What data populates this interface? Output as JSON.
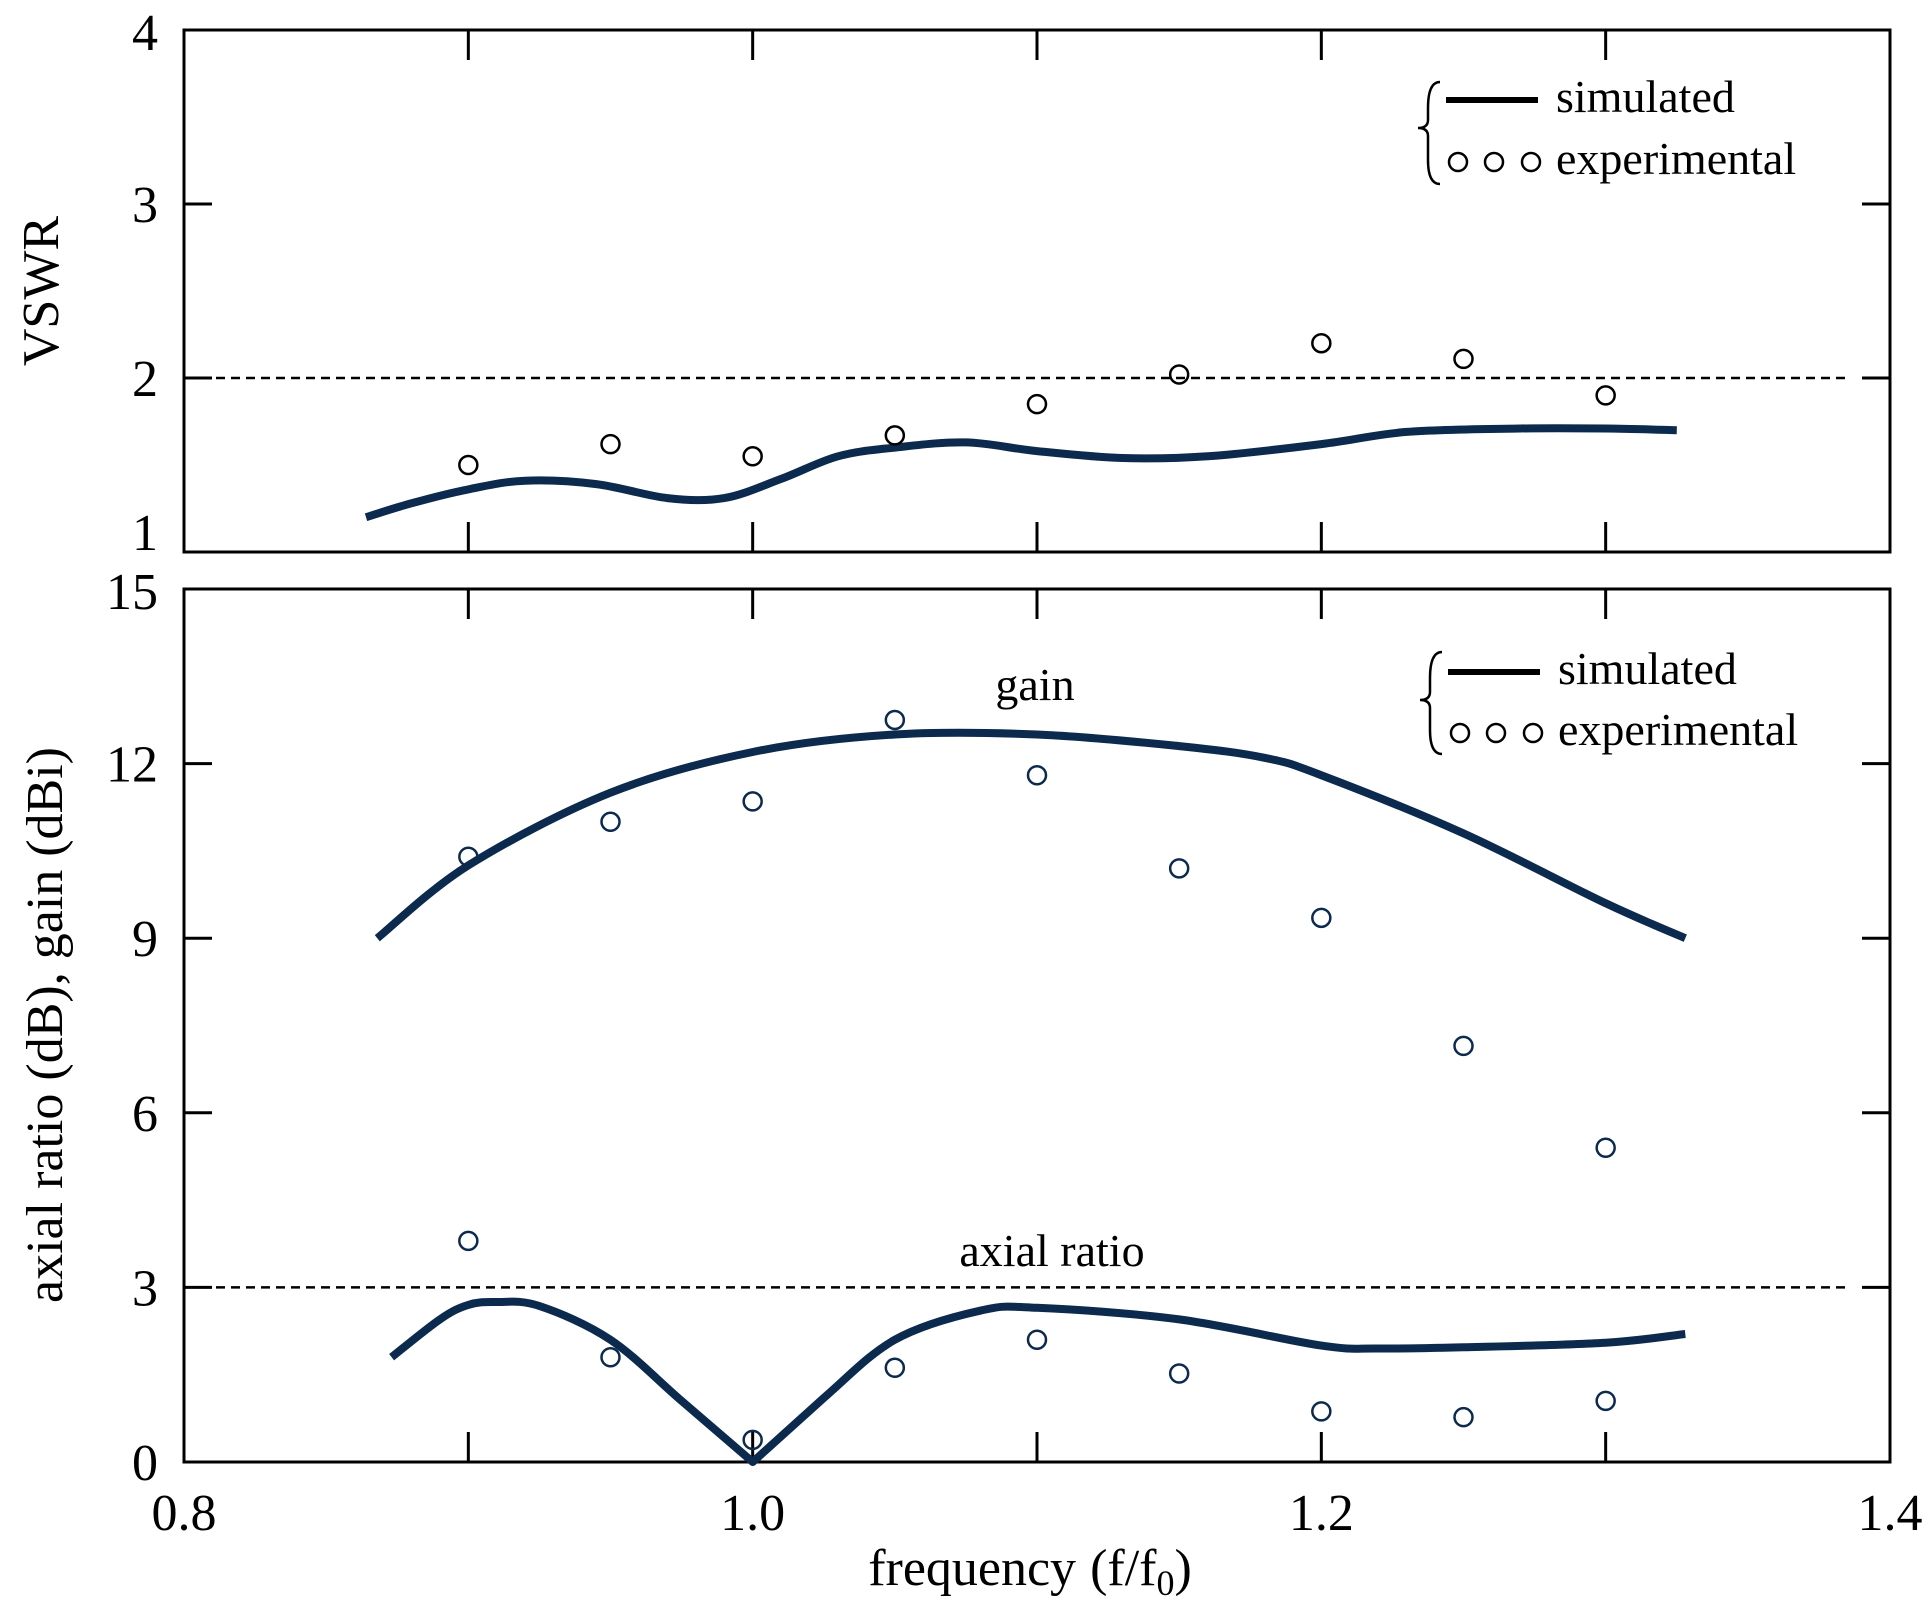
{
  "colors": {
    "series": "#0c2a4e",
    "axis": "#000000"
  },
  "chart_data": [
    {
      "type": "line",
      "panel": "top",
      "ylabel": "VSWR",
      "xlabel": "",
      "xlim": [
        0.8,
        1.4
      ],
      "ylim": [
        1,
        4
      ],
      "yticks": [
        "1",
        "2",
        "3",
        "4"
      ],
      "reference_line": {
        "y": 2,
        "style": "dashed"
      },
      "legend": {
        "position": "top-right",
        "entries": [
          "simulated",
          "experimental"
        ]
      },
      "series": [
        {
          "name": "simulated",
          "style": "line",
          "x": [
            0.864,
            0.88,
            0.9,
            0.92,
            0.945,
            0.97,
            0.99,
            1.01,
            1.03,
            1.05,
            1.075,
            1.1,
            1.13,
            1.16,
            1.2,
            1.23,
            1.27,
            1.3,
            1.325
          ],
          "y": [
            1.2,
            1.28,
            1.36,
            1.41,
            1.39,
            1.31,
            1.31,
            1.42,
            1.55,
            1.6,
            1.63,
            1.58,
            1.54,
            1.55,
            1.62,
            1.69,
            1.71,
            1.71,
            1.7
          ]
        },
        {
          "name": "experimental",
          "style": "circle",
          "x": [
            0.9,
            0.95,
            1.0,
            1.05,
            1.1,
            1.15,
            1.2,
            1.25,
            1.3
          ],
          "y": [
            1.5,
            1.62,
            1.55,
            1.67,
            1.85,
            2.02,
            2.2,
            2.11,
            1.9
          ]
        }
      ]
    },
    {
      "type": "line",
      "panel": "bottom",
      "ylabel": "axial ratio (dB), gain (dBi)",
      "xlabel_main": "frequency",
      "xlabel_unit": "(f/f",
      "xlabel_sub": "0",
      "xlabel_close": ")",
      "xlim": [
        0.8,
        1.4
      ],
      "ylim": [
        0,
        15
      ],
      "xticks": [
        "0.8",
        "1.0",
        "1.2",
        "1.4"
      ],
      "yticks": [
        "0",
        "3",
        "6",
        "9",
        "12",
        "15"
      ],
      "reference_line": {
        "y": 3,
        "style": "dashed"
      },
      "annotations": [
        "gain",
        "axial ratio"
      ],
      "legend": {
        "position": "top-right",
        "entries": [
          "simulated",
          "experimental"
        ]
      },
      "series": [
        {
          "name": "gain simulated",
          "style": "line",
          "x": [
            0.868,
            0.9,
            0.95,
            1.0,
            1.05,
            1.1,
            1.15,
            1.18,
            1.2,
            1.25,
            1.3,
            1.328
          ],
          "y": [
            9.0,
            10.25,
            11.5,
            12.2,
            12.5,
            12.5,
            12.3,
            12.1,
            11.8,
            10.8,
            9.6,
            9.0
          ]
        },
        {
          "name": "gain experimental",
          "style": "circle",
          "x": [
            0.9,
            0.95,
            1.0,
            1.05,
            1.1,
            1.15,
            1.2,
            1.25,
            1.3
          ],
          "y": [
            10.4,
            11.0,
            11.35,
            12.75,
            11.8,
            10.2,
            9.35,
            7.15,
            5.4
          ]
        },
        {
          "name": "axial ratio simulated",
          "style": "line",
          "x": [
            0.873,
            0.89,
            0.9,
            0.91,
            0.925,
            0.95,
            0.975,
            1.0,
            1.025,
            1.05,
            1.08,
            1.1,
            1.15,
            1.2,
            1.22,
            1.25,
            1.3,
            1.328
          ],
          "y": [
            1.8,
            2.45,
            2.7,
            2.75,
            2.68,
            2.1,
            1.05,
            0.0,
            1.1,
            2.1,
            2.6,
            2.65,
            2.45,
            2.0,
            1.95,
            1.97,
            2.05,
            2.2
          ]
        },
        {
          "name": "axial ratio experimental",
          "style": "circle",
          "x": [
            0.9,
            0.95,
            1.0,
            1.05,
            1.1,
            1.15,
            1.2,
            1.25,
            1.3
          ],
          "y": [
            3.8,
            1.8,
            0.38,
            1.62,
            2.1,
            1.52,
            0.87,
            0.77,
            1.05
          ]
        }
      ]
    }
  ]
}
